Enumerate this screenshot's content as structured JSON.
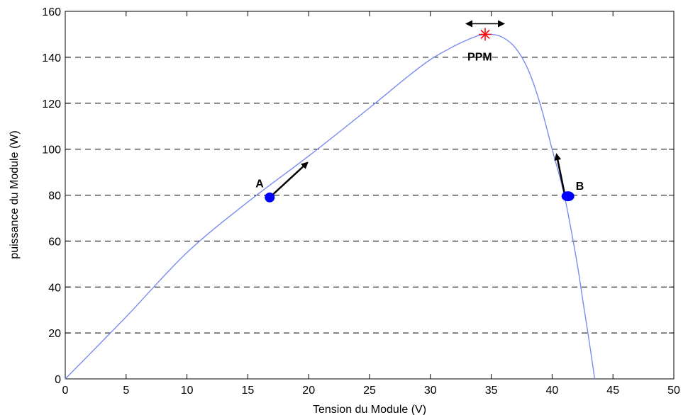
{
  "chart_data": {
    "type": "line",
    "xlabel": "Tension du Module (V)",
    "ylabel": "puissance du Module (W)",
    "xlim": [
      0,
      50
    ],
    "ylim": [
      0,
      160
    ],
    "xticks": [
      "0",
      "5",
      "10",
      "15",
      "20",
      "25",
      "30",
      "35",
      "40",
      "45",
      "50"
    ],
    "yticks": [
      "0",
      "20",
      "40",
      "60",
      "80",
      "100",
      "120",
      "140",
      "160"
    ],
    "grid": "horizontal-dashed",
    "series": [
      {
        "color": "#7b8cf0",
        "x": [
          0,
          5,
          10,
          15,
          20,
          25,
          28,
          30,
          32,
          33,
          34,
          35,
          36,
          37,
          38,
          39,
          40,
          41,
          42,
          42.5,
          43,
          43.5
        ],
        "y": [
          0,
          27,
          55,
          77,
          97,
          118,
          131,
          139,
          145,
          147.5,
          149.5,
          150,
          148.5,
          144,
          135,
          120,
          100,
          80,
          52,
          35,
          18,
          0
        ]
      }
    ],
    "points": [
      {
        "label": "A",
        "x": 16.8,
        "y": 79,
        "color": "#0000ff"
      },
      {
        "label": "B",
        "x": 41.3,
        "y": 79.5,
        "color": "#0000ff"
      }
    ],
    "mpp": {
      "label": "PPM",
      "x": 34.5,
      "y": 150,
      "color": "#ff0000"
    }
  }
}
